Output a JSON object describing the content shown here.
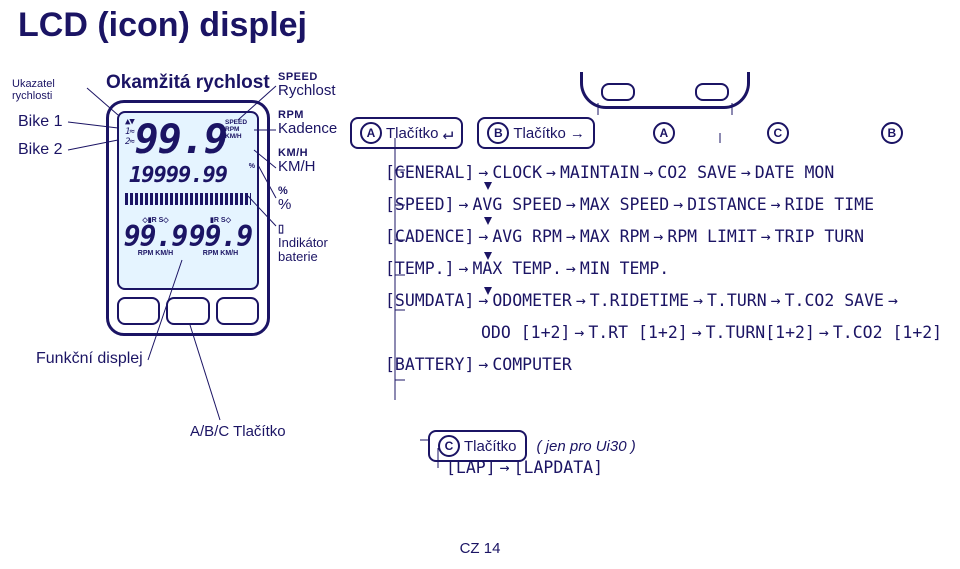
{
  "title": "LCD (icon) displej",
  "left": {
    "pacer": "Ukazatel rychlosti",
    "bike1": "Bike 1",
    "bike2": "Bike 2",
    "okamzita": "Okamžitá rychlost",
    "func": "Funkční displej",
    "abc_label": "A/B/C Tlačítko"
  },
  "legend": {
    "speed_small": "SPEED",
    "speed": "Rychlost",
    "rpm_small": "RPM",
    "rpm": "Kadence",
    "kmh_small": "KM/H",
    "kmh": "KM/H",
    "pct_small": "%",
    "pct": "%",
    "bat": "Indikátor baterie"
  },
  "lcd": {
    "big": "99.9",
    "icons": "SPEED\nRPM\nKM/H",
    "mid": "19999.99",
    "mid_r": "%",
    "bot1_top": "◇▮R  S◇ ▮R  S◇",
    "bot1_big": "99.9",
    "bot1_unit": "°C\n°F\nRPM",
    "bot2_big": "99.9",
    "small_left": "1≈\n2≈"
  },
  "right": {
    "a_label": "Tlačítko",
    "b_label": "Tlačítko",
    "c_hint": "( jen pro Ui30 )",
    "c_label": "Tlačítko"
  },
  "tree": [
    {
      "cat": "[GENERAL]",
      "items": [
        "CLOCK",
        "MAINTAIN",
        "CO2 SAVE",
        "DATE MON"
      ]
    },
    {
      "cat": "[SPEED]",
      "items": [
        "AVG SPEED",
        "MAX SPEED",
        "DISTANCE",
        "RIDE TIME"
      ]
    },
    {
      "cat": "[CADENCE]",
      "items": [
        "AVG RPM",
        "MAX RPM",
        "RPM LIMIT",
        "TRIP TURN"
      ]
    },
    {
      "cat": "[TEMP.]",
      "items": [
        "MAX TEMP.",
        "MIN TEMP."
      ]
    },
    {
      "cat": "[SUMDATA]",
      "items": [
        "ODOMETER",
        "T.RIDETIME",
        "T.TURN",
        "T.CO2 SAVE"
      ],
      "trail": true
    },
    {
      "cat": "",
      "items": [
        "ODO [1+2]",
        "T.RT [1+2]",
        "T.TURN[1+2]",
        "T.CO2 [1+2]"
      ]
    },
    {
      "cat": "[BATTERY]",
      "items": [
        "COMPUTER"
      ]
    }
  ],
  "lap": {
    "a": "[LAP]",
    "b": "[LAPDATA]"
  },
  "footer": "CZ 14",
  "style": {
    "ink": "#1b1464"
  }
}
